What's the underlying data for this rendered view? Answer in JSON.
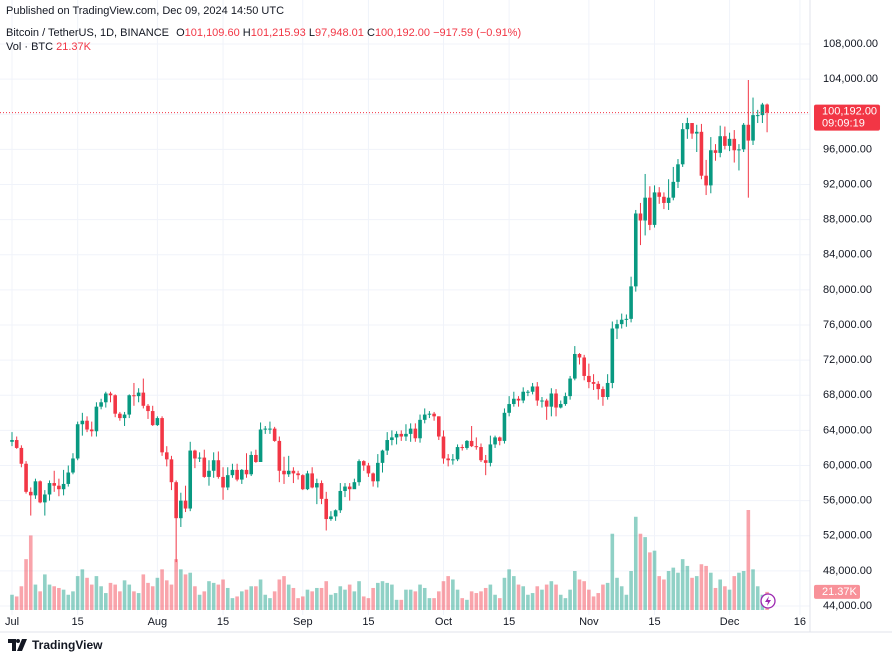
{
  "chart_data": {
    "type": "candlestick",
    "published": "Published on TradingView.com, Dec 09, 2024 14:50 UTC",
    "symbol": "Bitcoin / TetherUS, 1D, BINANCE",
    "ohlc_prefixes": [
      "O",
      "H",
      "L",
      "C"
    ],
    "ohlc_labels": {
      "open": "101,109.60",
      "high": "101,215.93",
      "low": "97,948.01",
      "close": "100,192.00",
      "change": "−917.59 (−0.91%)"
    },
    "last_price_label": "100,192.00",
    "countdown": "09:09:19",
    "brand": "TradingView",
    "up_color": "#089981",
    "down_color": "#f23645",
    "grid": true,
    "x": [
      "Jul 01",
      "Jul 02",
      "Jul 03",
      "Jul 04",
      "Jul 05",
      "Jul 06",
      "Jul 07",
      "Jul 08",
      "Jul 09",
      "Jul 10",
      "Jul 11",
      "Jul 12",
      "Jul 13",
      "Jul 14",
      "Jul 15",
      "Jul 16",
      "Jul 17",
      "Jul 18",
      "Jul 19",
      "Jul 20",
      "Jul 21",
      "Jul 22",
      "Jul 23",
      "Jul 24",
      "Jul 25",
      "Jul 26",
      "Jul 27",
      "Jul 28",
      "Jul 29",
      "Jul 30",
      "Jul 31",
      "Aug 01",
      "Aug 02",
      "Aug 03",
      "Aug 04",
      "Aug 05",
      "Aug 06",
      "Aug 07",
      "Aug 08",
      "Aug 09",
      "Aug 10",
      "Aug 11",
      "Aug 12",
      "Aug 13",
      "Aug 14",
      "Aug 15",
      "Aug 16",
      "Aug 17",
      "Aug 18",
      "Aug 19",
      "Aug 20",
      "Aug 21",
      "Aug 22",
      "Aug 23",
      "Aug 24",
      "Aug 25",
      "Aug 26",
      "Aug 27",
      "Aug 28",
      "Aug 29",
      "Aug 30",
      "Aug 31",
      "Sep 01",
      "Sep 02",
      "Sep 03",
      "Sep 04",
      "Sep 05",
      "Sep 06",
      "Sep 07",
      "Sep 08",
      "Sep 09",
      "Sep 10",
      "Sep 11",
      "Sep 12",
      "Sep 13",
      "Sep 14",
      "Sep 15",
      "Sep 16",
      "Sep 17",
      "Sep 18",
      "Sep 19",
      "Sep 20",
      "Sep 21",
      "Sep 22",
      "Sep 23",
      "Sep 24",
      "Sep 25",
      "Sep 26",
      "Sep 27",
      "Sep 28",
      "Sep 29",
      "Sep 30",
      "Oct 01",
      "Oct 02",
      "Oct 03",
      "Oct 04",
      "Oct 05",
      "Oct 06",
      "Oct 07",
      "Oct 08",
      "Oct 09",
      "Oct 10",
      "Oct 11",
      "Oct 12",
      "Oct 13",
      "Oct 14",
      "Oct 15",
      "Oct 16",
      "Oct 17",
      "Oct 18",
      "Oct 19",
      "Oct 20",
      "Oct 21",
      "Oct 22",
      "Oct 23",
      "Oct 24",
      "Oct 25",
      "Oct 26",
      "Oct 27",
      "Oct 28",
      "Oct 29",
      "Oct 30",
      "Oct 31",
      "Nov 01",
      "Nov 02",
      "Nov 03",
      "Nov 04",
      "Nov 05",
      "Nov 06",
      "Nov 07",
      "Nov 08",
      "Nov 09",
      "Nov 10",
      "Nov 11",
      "Nov 12",
      "Nov 13",
      "Nov 14",
      "Nov 15",
      "Nov 16",
      "Nov 17",
      "Nov 18",
      "Nov 19",
      "Nov 20",
      "Nov 21",
      "Nov 22",
      "Nov 23",
      "Nov 24",
      "Nov 25",
      "Nov 26",
      "Nov 27",
      "Nov 28",
      "Nov 29",
      "Nov 30",
      "Dec 01",
      "Dec 02",
      "Dec 03",
      "Dec 04",
      "Dec 05",
      "Dec 06",
      "Dec 07",
      "Dec 08",
      "Dec 09"
    ],
    "open": [
      62700,
      62900,
      62000,
      60200,
      57000,
      56600,
      58200,
      55800,
      56700,
      58000,
      57700,
      57300,
      57900,
      59200,
      60800,
      64700,
      65100,
      64100,
      63900,
      66700,
      67200,
      68200,
      68000,
      65900,
      65400,
      65800,
      68000,
      67900,
      68300,
      66800,
      66200,
      64600,
      65400,
      61500,
      60700,
      58100,
      54000,
      56000,
      55100,
      61700,
      60800,
      60900,
      58700,
      59400,
      60600,
      58700,
      57500,
      58900,
      59500,
      58400,
      59500,
      59000,
      61200,
      60400,
      64100,
      64200,
      64200,
      62800,
      59400,
      59000,
      59400,
      59100,
      58900,
      57300,
      59100,
      57500,
      58000,
      56200,
      53900,
      54200,
      54900,
      57100,
      57600,
      57300,
      58100,
      60500,
      60000,
      59100,
      58200,
      60300,
      61700,
      62900,
      63200,
      63600,
      63300,
      63600,
      64200,
      63100,
      65200,
      65800,
      65900,
      65600,
      63300,
      60800,
      60600,
      60700,
      62100,
      62000,
      62800,
      62200,
      62100,
      60600,
      60300,
      62400,
      63200,
      62800,
      66000,
      67000,
      67600,
      67400,
      68400,
      68400,
      69000,
      67400,
      67400,
      66700,
      68200,
      66600,
      67000,
      67900,
      69900,
      72700,
      72300,
      70200,
      69500,
      69300,
      68700,
      67800,
      69400,
      75600,
      76100,
      76600,
      76700,
      80400,
      88700,
      87900,
      90500,
      87400,
      91100,
      90600,
      89900,
      90500,
      92300,
      94300,
      98300,
      99000,
      97800,
      98000,
      93000,
      91900,
      95900,
      95600,
      97500,
      96400,
      97200,
      95900,
      96000,
      98800,
      97000,
      99900,
      99900,
      101109.6
    ],
    "high": [
      63800,
      63300,
      62300,
      60500,
      57500,
      58500,
      58300,
      57200,
      58300,
      59400,
      58500,
      59500,
      60000,
      61400,
      65000,
      66000,
      65600,
      65000,
      67200,
      67600,
      68400,
      68400,
      68100,
      66100,
      66100,
      68100,
      69400,
      68800,
      69900,
      67000,
      66800,
      65600,
      65600,
      62200,
      61100,
      58300,
      56900,
      57700,
      62700,
      61800,
      61500,
      61800,
      60600,
      61500,
      61600,
      59800,
      59800,
      60200,
      60200,
      59600,
      61400,
      61600,
      61800,
      64900,
      64500,
      65000,
      64400,
      63300,
      61000,
      61100,
      59800,
      59400,
      59000,
      59400,
      59800,
      58500,
      58300,
      57000,
      54800,
      55000,
      58000,
      58000,
      58000,
      58500,
      60700,
      60600,
      60300,
      59200,
      61300,
      61800,
      63800,
      64000,
      63900,
      64000,
      64700,
      64800,
      64800,
      65800,
      66500,
      66200,
      66100,
      65600,
      64000,
      61300,
      61300,
      62400,
      62400,
      62900,
      64500,
      63200,
      62500,
      61200,
      63400,
      63400,
      63300,
      66500,
      67900,
      68400,
      67900,
      68900,
      68600,
      69400,
      69500,
      67800,
      67600,
      68800,
      68700,
      67400,
      68300,
      70200,
      73600,
      72800,
      72600,
      71600,
      70400,
      69600,
      69000,
      70400,
      76400,
      76600,
      77300,
      77200,
      81500,
      89100,
      89900,
      93200,
      91800,
      91900,
      91700,
      91100,
      92600,
      94000,
      94900,
      99000,
      99600,
      99000,
      98800,
      98900,
      94800,
      97400,
      96600,
      98700,
      98600,
      97900,
      98200,
      96600,
      99000,
      103900,
      101900,
      100500,
      101300,
      101215.93
    ],
    "low": [
      62200,
      61900,
      59800,
      56800,
      54300,
      56200,
      55700,
      54300,
      56000,
      57000,
      56500,
      56600,
      57600,
      59000,
      60600,
      63400,
      63800,
      63300,
      63300,
      66400,
      66600,
      67200,
      65500,
      65100,
      64500,
      65400,
      66800,
      67200,
      66500,
      65300,
      64500,
      64500,
      61100,
      59900,
      57200,
      49000,
      53000,
      54700,
      54800,
      59700,
      60400,
      58600,
      57700,
      58600,
      58500,
      56100,
      57200,
      58600,
      58200,
      57900,
      58600,
      58800,
      60300,
      60400,
      63600,
      63600,
      62700,
      58100,
      57900,
      58700,
      58000,
      58400,
      57200,
      57200,
      57400,
      55600,
      55600,
      52600,
      53700,
      53700,
      54600,
      56400,
      56000,
      57400,
      57700,
      59400,
      58700,
      57600,
      57500,
      59200,
      61200,
      62300,
      62400,
      62800,
      62800,
      62700,
      62700,
      62600,
      64800,
      65400,
      65100,
      62900,
      60200,
      59900,
      60100,
      60500,
      61700,
      61800,
      62100,
      61800,
      60400,
      58900,
      59900,
      62000,
      62300,
      62500,
      65600,
      66700,
      66700,
      67100,
      67900,
      68100,
      66800,
      66600,
      65200,
      65600,
      65600,
      66500,
      66800,
      67500,
      69700,
      71500,
      69700,
      68800,
      68600,
      67500,
      66800,
      67500,
      68800,
      74400,
      75600,
      75800,
      76300,
      79800,
      85100,
      86200,
      86800,
      87100,
      89800,
      89200,
      89100,
      90200,
      91600,
      94000,
      97200,
      97200,
      95700,
      92600,
      90800,
      91000,
      94700,
      95100,
      96000,
      95800,
      94500,
      93600,
      95700,
      90500,
      96500,
      99000,
      99000,
      97948.01
    ],
    "close": [
      62900,
      62000,
      60200,
      57000,
      56600,
      58200,
      55800,
      56700,
      58000,
      57700,
      57300,
      57900,
      59200,
      60800,
      64700,
      65100,
      64100,
      63900,
      66700,
      67200,
      68200,
      68000,
      65900,
      65400,
      65800,
      68000,
      67900,
      68300,
      66800,
      66200,
      64600,
      65400,
      61500,
      60700,
      58100,
      54000,
      56000,
      55100,
      61700,
      60800,
      60900,
      58700,
      59400,
      60600,
      58700,
      57500,
      58900,
      59500,
      58400,
      59500,
      59000,
      61200,
      60400,
      64100,
      64200,
      64200,
      62800,
      59400,
      59000,
      59400,
      59100,
      58900,
      57300,
      59100,
      57500,
      58000,
      56200,
      53900,
      54200,
      54900,
      57100,
      57600,
      57300,
      58100,
      60500,
      60000,
      59100,
      58200,
      60300,
      61700,
      62900,
      63200,
      63600,
      63300,
      63600,
      64200,
      63100,
      65200,
      65800,
      65900,
      65600,
      63300,
      60800,
      60600,
      60700,
      62100,
      62000,
      62800,
      62200,
      62100,
      60600,
      60300,
      62400,
      63200,
      62800,
      66000,
      67000,
      67600,
      67400,
      68400,
      68400,
      69000,
      67400,
      67400,
      66700,
      68200,
      66600,
      67000,
      67900,
      69900,
      72700,
      72300,
      70200,
      69500,
      69300,
      68700,
      67800,
      69400,
      75600,
      76100,
      76600,
      76700,
      80400,
      88700,
      87900,
      90500,
      87400,
      91100,
      90600,
      89900,
      90500,
      92300,
      94300,
      98300,
      99000,
      97800,
      98000,
      93000,
      91900,
      95900,
      95600,
      97500,
      96400,
      97200,
      95900,
      96000,
      98800,
      97000,
      99900,
      99900,
      101109.6,
      100192
    ],
    "volume": {
      "name": "Vol · BTC",
      "values": [
        18000,
        16000,
        28000,
        60000,
        88000,
        30000,
        22000,
        42000,
        30000,
        28000,
        26000,
        24000,
        18000,
        22000,
        40000,
        48000,
        38000,
        30000,
        40000,
        28000,
        20000,
        32000,
        30000,
        22000,
        35000,
        30000,
        22000,
        20000,
        42000,
        32000,
        28000,
        38000,
        48000,
        35000,
        30000,
        60000,
        48000,
        42000,
        44000,
        28000,
        18000,
        22000,
        34000,
        32000,
        30000,
        36000,
        26000,
        14000,
        16000,
        22000,
        24000,
        28000,
        28000,
        36000,
        18000,
        14000,
        22000,
        36000,
        40000,
        30000,
        26000,
        14000,
        16000,
        24000,
        22000,
        26000,
        26000,
        34000,
        18000,
        20000,
        28000,
        24000,
        30000,
        22000,
        34000,
        16000,
        14000,
        26000,
        32000,
        34000,
        32000,
        30000,
        12000,
        12000,
        24000,
        24000,
        22000,
        30000,
        26000,
        14000,
        14000,
        22000,
        34000,
        40000,
        36000,
        24000,
        14000,
        12000,
        22000,
        20000,
        22000,
        26000,
        30000,
        18000,
        14000,
        38000,
        48000,
        40000,
        30000,
        28000,
        18000,
        20000,
        28000,
        24000,
        30000,
        34000,
        30000,
        18000,
        14000,
        24000,
        46000,
        36000,
        34000,
        24000,
        16000,
        20000,
        30000,
        32000,
        90000,
        38000,
        28000,
        18000,
        46000,
        110000,
        90000,
        86000,
        68000,
        70000,
        40000,
        36000,
        46000,
        50000,
        44000,
        60000,
        52000,
        38000,
        40000,
        54000,
        52000,
        44000,
        26000,
        36000,
        28000,
        24000,
        40000,
        44000,
        46000,
        118000,
        48000,
        28000,
        18000,
        21370
      ],
      "value_labels": {
        "last": "21.37K"
      }
    },
    "ylim": [
      44000,
      108000
    ],
    "yticks": [
      {
        "value": 44000,
        "label": "44,000.00"
      },
      {
        "value": 48000,
        "label": "48,000.00"
      },
      {
        "value": 52000,
        "label": "52,000.00"
      },
      {
        "value": 56000,
        "label": "56,000.00"
      },
      {
        "value": 60000,
        "label": "60,000.00"
      },
      {
        "value": 64000,
        "label": "64,000.00"
      },
      {
        "value": 68000,
        "label": "68,000.00"
      },
      {
        "value": 72000,
        "label": "72,000.00"
      },
      {
        "value": 76000,
        "label": "76,000.00"
      },
      {
        "value": 80000,
        "label": "80,000.00"
      },
      {
        "value": 84000,
        "label": "84,000.00"
      },
      {
        "value": 88000,
        "label": "88,000.00"
      },
      {
        "value": 92000,
        "label": "92,000.00"
      },
      {
        "value": 96000,
        "label": "96,000.00"
      },
      {
        "value": 100000,
        "label": "100,000.00"
      },
      {
        "value": 104000,
        "label": "104,000.00"
      },
      {
        "value": 108000,
        "label": "108,000.00"
      }
    ],
    "xticks": [
      {
        "value": "Jul 01",
        "label": "Jul"
      },
      {
        "value": "Jul 15",
        "label": "15"
      },
      {
        "value": "Aug 01",
        "label": "Aug"
      },
      {
        "value": "Aug 15",
        "label": "15"
      },
      {
        "value": "Sep 01",
        "label": "Sep"
      },
      {
        "value": "Sep 15",
        "label": "15"
      },
      {
        "value": "Oct 01",
        "label": "Oct"
      },
      {
        "value": "Oct 15",
        "label": "15"
      },
      {
        "value": "Nov 01",
        "label": "Nov"
      },
      {
        "value": "Nov 15",
        "label": "15"
      },
      {
        "value": "Dec 01",
        "label": "Dec"
      },
      {
        "value": "Dec 16",
        "label": "16"
      }
    ]
  }
}
